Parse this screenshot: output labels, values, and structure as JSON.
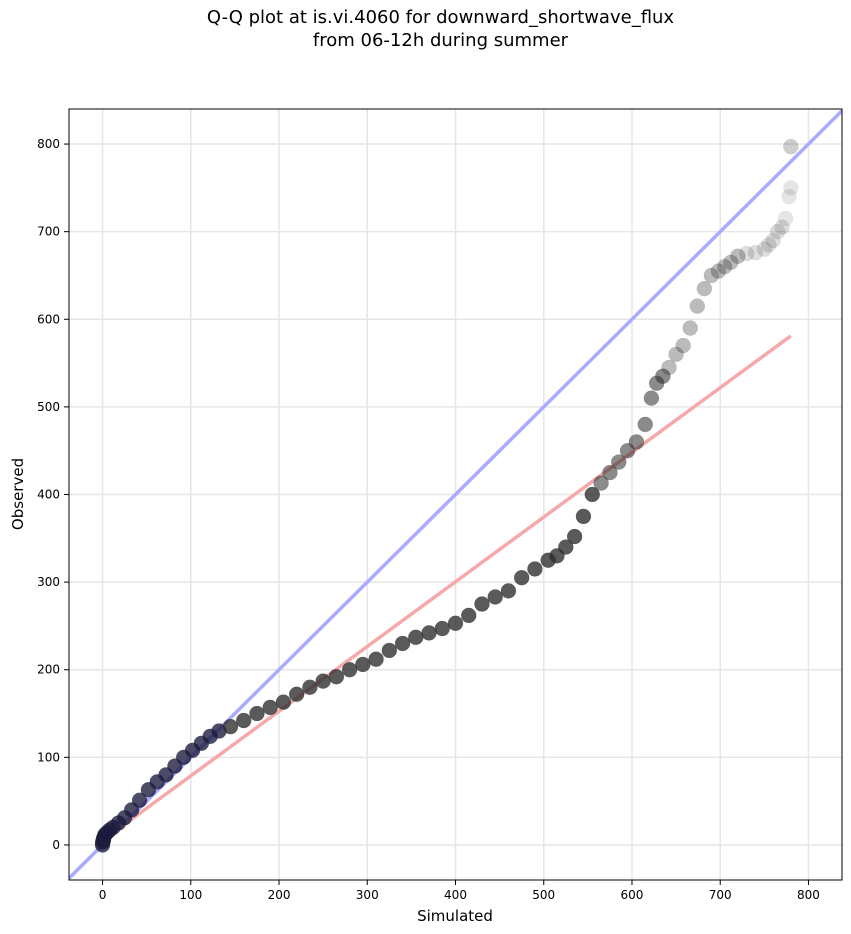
{
  "chart_data": {
    "type": "scatter",
    "title_line1": "Q-Q plot at is.vi.4060 for downward_shortwave_flux",
    "title_line2": "from 06-12h during summer",
    "xlabel": "Simulated",
    "ylabel": "Observed",
    "xlim": [
      -38,
      838
    ],
    "ylim": [
      -40,
      840
    ],
    "xticks": [
      0,
      100,
      200,
      300,
      400,
      500,
      600,
      700,
      800
    ],
    "yticks": [
      0,
      100,
      200,
      300,
      400,
      500,
      600,
      700,
      800
    ],
    "grid": true,
    "reference_lines": [
      {
        "label": "1:1",
        "color": "#aaaaff",
        "x": [
          -38,
          838
        ],
        "y": [
          -38,
          838
        ]
      },
      {
        "label": "fit",
        "color": "#f5a9a9",
        "x": [
          0,
          780
        ],
        "y": [
          5,
          581
        ]
      }
    ],
    "quantiles": {
      "x": [
        0,
        0,
        1,
        1,
        2,
        3,
        5,
        8,
        12,
        18,
        25,
        33,
        42,
        52,
        62,
        72,
        82,
        92,
        102,
        112,
        122,
        132,
        145,
        160,
        175,
        190,
        205,
        220,
        235,
        250,
        265,
        280,
        295,
        310,
        325,
        340,
        355,
        370,
        385,
        400,
        415,
        430,
        445,
        460,
        475,
        490,
        505,
        515,
        525,
        535,
        545,
        555,
        565,
        575,
        585,
        595,
        605,
        615,
        622,
        628,
        635,
        642,
        650,
        658,
        666,
        674,
        682,
        690,
        698,
        705,
        712,
        720,
        730,
        740,
        750,
        755,
        760,
        765,
        770,
        774,
        778,
        780,
        780,
        780
      ],
      "y": [
        0,
        3,
        5,
        7,
        10,
        12,
        14,
        17,
        20,
        25,
        31,
        40,
        51,
        63,
        72,
        80,
        90,
        100,
        108,
        116,
        124,
        130,
        135,
        142,
        150,
        157,
        163,
        172,
        180,
        187,
        192,
        200,
        206,
        212,
        222,
        230,
        237,
        242,
        247,
        253,
        262,
        275,
        283,
        290,
        305,
        315,
        325,
        330,
        340,
        352,
        375,
        400,
        413,
        425,
        437,
        450,
        460,
        480,
        510,
        527,
        535,
        545,
        560,
        570,
        590,
        615,
        635,
        650,
        655,
        660,
        665,
        672,
        675,
        676,
        680,
        685,
        690,
        700,
        705,
        715,
        740,
        750,
        797,
        797
      ]
    }
  }
}
